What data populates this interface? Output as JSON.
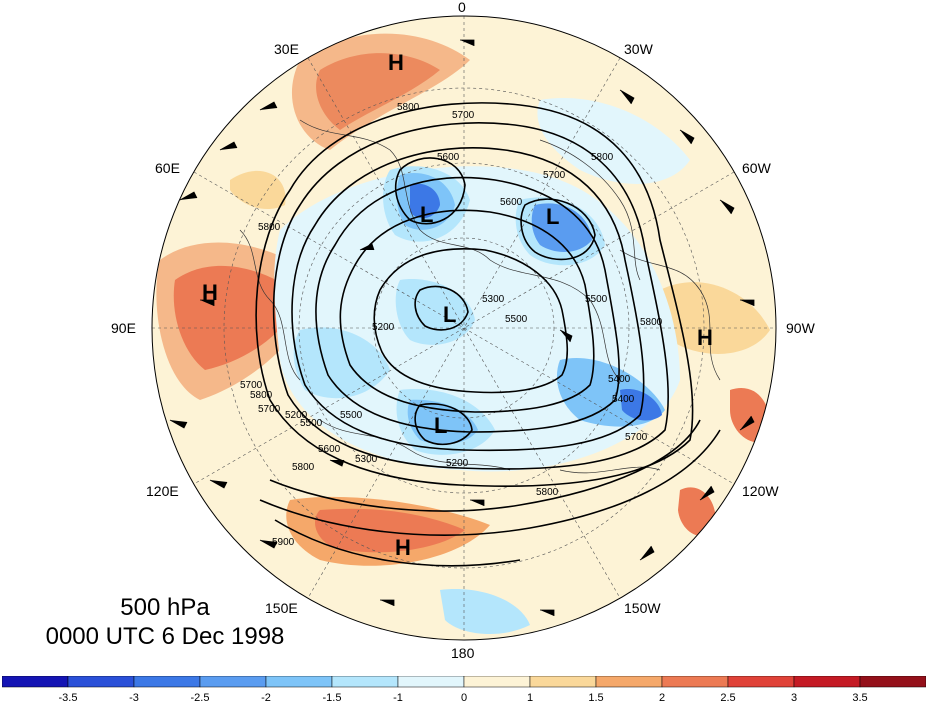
{
  "title": {
    "level": "500 hPa",
    "time": "0000 UTC 6 Dec 1998"
  },
  "map": {
    "projection": "north-polar-stereographic",
    "longitude_labels": [
      "0",
      "30W",
      "60W",
      "90W",
      "120W",
      "150W",
      "180",
      "150E",
      "120E",
      "90E",
      "60E",
      "30E"
    ],
    "pressure_centers": [
      {
        "label": "H",
        "region": "north Atlantic near 15E"
      },
      {
        "label": "L",
        "region": "Scandinavia"
      },
      {
        "label": "L",
        "region": "Greenland"
      },
      {
        "label": "H",
        "region": "central Asia"
      },
      {
        "label": "L",
        "region": "Arctic Ocean"
      },
      {
        "label": "H",
        "region": "central North America"
      },
      {
        "label": "L",
        "region": "Bering Sea"
      },
      {
        "label": "H",
        "region": "subtropical Pacific"
      }
    ],
    "contour_labels": [
      "5700",
      "5800",
      "5600",
      "5600",
      "5700",
      "5800",
      "5800",
      "5500",
      "5300",
      "5500",
      "5800",
      "5200",
      "5800",
      "5200",
      "5400",
      "5500",
      "5700",
      "5800",
      "5300",
      "5600",
      "5200",
      "5800",
      "5900",
      "5700",
      "5500",
      "5400",
      "5700"
    ],
    "colors": {
      "ocean_background": "#fdf3d6",
      "contour": "#000000"
    }
  },
  "colorbar": {
    "ticks": [
      "-3.5",
      "-3",
      "-2.5",
      "-2",
      "-1.5",
      "-1",
      "0",
      "1",
      "1.5",
      "2",
      "2.5",
      "3",
      "3.5"
    ],
    "colors": [
      "#1414b4",
      "#2a50d8",
      "#3c78e6",
      "#5a9cf0",
      "#7ec4f8",
      "#b4e6fc",
      "#e2f6fc",
      "#fdf3d6",
      "#fad89a",
      "#f5a86a",
      "#ec7a54",
      "#e04238",
      "#c41a24",
      "#94101a"
    ]
  }
}
